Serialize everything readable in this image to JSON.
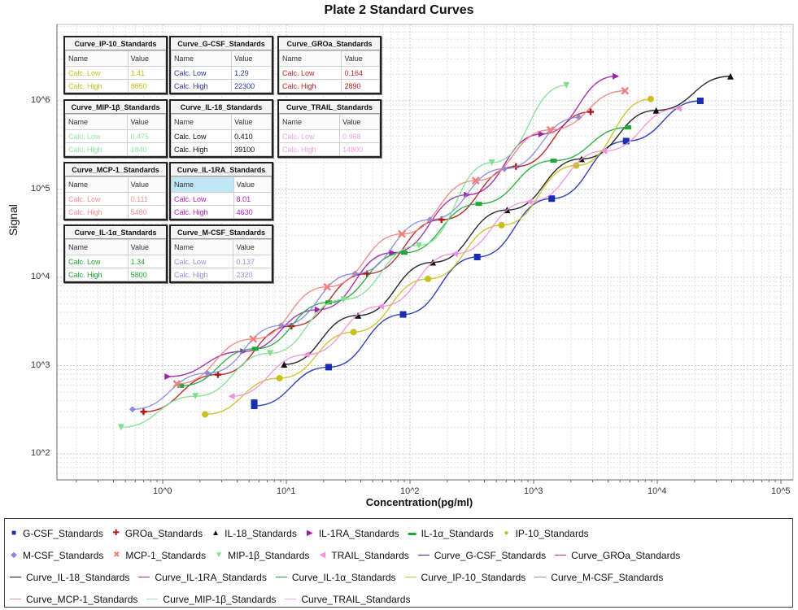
{
  "chart_data": {
    "type": "line",
    "title": "Plate 2 Standard Curves",
    "xlabel": "Concentration(pg/ml)",
    "ylabel": "Signal",
    "xscale": "log",
    "yscale": "log",
    "xlim": [
      0.2,
      100000
    ],
    "ylim": [
      50,
      8000000
    ],
    "xticks": [
      "10^0",
      "10^1",
      "10^2",
      "10^3",
      "10^4",
      "10^5"
    ],
    "yticks": [
      "10^2",
      "10^3",
      "10^4",
      "10^5",
      "10^6"
    ],
    "grid": true,
    "legend_position": "bottom",
    "series": [
      {
        "name": "G-CSF_Standards",
        "color": "#1a2fb0",
        "marker": "square",
        "points": [
          [
            5.5,
            380
          ],
          [
            5.5,
            350
          ],
          [
            22,
            960
          ],
          [
            88,
            3800
          ],
          [
            350,
            17000
          ],
          [
            1400,
            78000
          ],
          [
            5600,
            350000
          ],
          [
            22300,
            1000000
          ]
        ]
      },
      {
        "name": "GROa_Standards",
        "color": "#b01818",
        "marker": "plus",
        "points": [
          [
            0.7,
            300
          ],
          [
            2.8,
            790
          ],
          [
            11,
            2800
          ],
          [
            45,
            11000
          ],
          [
            180,
            45000
          ],
          [
            720,
            180000
          ],
          [
            2890,
            750000
          ]
        ]
      },
      {
        "name": "IL-18_Standards",
        "color": "#111111",
        "marker": "triangle",
        "points": [
          [
            9.6,
            1030
          ],
          [
            38,
            3700
          ],
          [
            153,
            14800
          ],
          [
            610,
            58000
          ],
          [
            2440,
            220000
          ],
          [
            9800,
            780000
          ],
          [
            39100,
            1900000
          ]
        ]
      },
      {
        "name": "IL-1RA_Standards",
        "color": "#a01fa8",
        "marker": "triangle-right",
        "points": [
          [
            1.1,
            750
          ],
          [
            4.5,
            1450
          ],
          [
            18,
            4300
          ],
          [
            72,
            19000
          ],
          [
            290,
            86000
          ],
          [
            1160,
            420000
          ],
          [
            4630,
            1900000
          ]
        ]
      },
      {
        "name": "IL-1α_Standards",
        "color": "#1fa83a",
        "marker": "bar",
        "points": [
          [
            1.4,
            590
          ],
          [
            5.6,
            1550
          ],
          [
            22,
            5200
          ],
          [
            90,
            19000
          ],
          [
            360,
            68000
          ],
          [
            1450,
            210000
          ],
          [
            5800,
            500000
          ]
        ]
      },
      {
        "name": "IP-10_Standards",
        "color": "#c8c020",
        "marker": "circle",
        "points": [
          [
            2.2,
            280
          ],
          [
            8.8,
            720
          ],
          [
            35,
            2400
          ],
          [
            140,
            9600
          ],
          [
            550,
            39000
          ],
          [
            2210,
            185000
          ],
          [
            8850,
            1050000
          ]
        ]
      },
      {
        "name": "M-CSF_Standards",
        "color": "#8a8ae0",
        "marker": "diamond",
        "points": [
          [
            0.57,
            320
          ],
          [
            2.3,
            820
          ],
          [
            9.1,
            2850
          ],
          [
            36,
            11000
          ],
          [
            145,
            45000
          ],
          [
            580,
            170000
          ],
          [
            2320,
            650000
          ]
        ]
      },
      {
        "name": "MCP-1_Standards",
        "color": "#f08080",
        "marker": "x",
        "points": [
          [
            1.3,
            620
          ],
          [
            5.4,
            2000
          ],
          [
            21.4,
            7800
          ],
          [
            86,
            31000
          ],
          [
            340,
            125000
          ],
          [
            1370,
            470000
          ],
          [
            5480,
            1300000
          ]
        ]
      },
      {
        "name": "MIP-1β_Standards",
        "color": "#80e090",
        "marker": "triangle-down",
        "points": [
          [
            0.46,
            200
          ],
          [
            1.84,
            450
          ],
          [
            7.4,
            1380
          ],
          [
            29,
            5600
          ],
          [
            118,
            23000
          ],
          [
            460,
            200000
          ],
          [
            1840,
            1500000
          ]
        ]
      },
      {
        "name": "TRAIL_Standards",
        "color": "#f090e0",
        "marker": "triangle-left",
        "points": [
          [
            3.6,
            450
          ],
          [
            14.5,
            1330
          ],
          [
            58,
            4700
          ],
          [
            230,
            18500
          ],
          [
            920,
            72000
          ],
          [
            3700,
            270000
          ],
          [
            14800,
            820000
          ]
        ]
      }
    ]
  },
  "title": "Plate 2 Standard Curves",
  "axes": {
    "xlabel": "Concentration(pg/ml)",
    "ylabel": "Signal",
    "xticks": [
      "10^0",
      "10^1",
      "10^2",
      "10^3",
      "10^4",
      "10^5"
    ],
    "yticks": [
      "10^6",
      "10^5",
      "10^4",
      "10^3",
      "10^2"
    ]
  },
  "info_boxes": [
    {
      "title": "Curve_IP-10_Standards",
      "col_name": "Name",
      "col_value": "Value",
      "color": "#c8c020",
      "low_label": "Calc. Low",
      "low": "1.41",
      "high_label": "Calc. High",
      "high": "8850"
    },
    {
      "title": "Curve_G-CSF_Standards",
      "col_name": "Name",
      "col_value": "Value",
      "color": "#2a35a8",
      "low_label": "Calc. Low",
      "low": "1.29",
      "high_label": "Calc. High",
      "high": "22300"
    },
    {
      "title": "Curve_GROa_Standards",
      "col_name": "Name",
      "col_value": "Value",
      "color": "#c02020",
      "low_label": "Calc. Low",
      "low": "0.164",
      "high_label": "Calc. High",
      "high": "2890"
    },
    {
      "title": "Curve_MIP-1β_Standards",
      "col_name": "Name",
      "col_value": "Value",
      "color": "#90e8a0",
      "low_label": "Calc. Low",
      "low": "0.475",
      "high_label": "Calc. High",
      "high": "1840"
    },
    {
      "title": "Curve_IL-18_Standards",
      "col_name": "Name",
      "col_value": "Value",
      "color": "#111111",
      "low_label": "Calc. Low",
      "low": "0.410",
      "high_label": "Calc. High",
      "high": "39100"
    },
    {
      "title": "Curve_TRAIL_Standards",
      "col_name": "Name",
      "col_value": "Value",
      "color": "#f0a0e8",
      "low_label": "Calc. Low",
      "low": "0.968",
      "high_label": "Calc. High",
      "high": "14800"
    },
    {
      "title": "Curve_MCP-1_Standards",
      "col_name": "Name",
      "col_value": "Value",
      "color": "#f09090",
      "low_label": "Calc. Low",
      "low": "0.111",
      "high_label": "Calc. High",
      "high": "5480"
    },
    {
      "title": "Curve_IL-1RA_Standards",
      "col_name": "Name",
      "col_value": "Value",
      "color": "#b020b0",
      "low_label": "Calc. Low",
      "low": "8.01",
      "high_label": "Calc. High",
      "high": "4630"
    },
    {
      "title": "Curve_IL-1α_Standards",
      "col_name": "Name",
      "col_value": "Value",
      "color": "#20a830",
      "low_label": "Calc. Low",
      "low": "1.34",
      "high_label": "Calc. High",
      "high": "5800"
    },
    {
      "title": "Curve_M-CSF_Standards",
      "col_name": "Name",
      "col_value": "Value",
      "color": "#9090e0",
      "low_label": "Calc. Low",
      "low": "0.137",
      "high_label": "Calc. High",
      "high": "2320"
    }
  ],
  "legend": {
    "rows": [
      [
        {
          "kind": "marker",
          "glyph": "■",
          "color": "#1a2fb0",
          "label": "G-CSF_Standards"
        },
        {
          "kind": "marker",
          "glyph": "✚",
          "color": "#b01818",
          "label": "GROa_Standards"
        },
        {
          "kind": "marker",
          "glyph": "▲",
          "color": "#111111",
          "label": "IL-18_Standards"
        },
        {
          "kind": "marker",
          "glyph": "▶",
          "color": "#a01fa8",
          "label": "IL-1RA_Standards"
        },
        {
          "kind": "marker",
          "glyph": "▬",
          "color": "#1fa83a",
          "label": "IL-1α_Standards"
        },
        {
          "kind": "marker",
          "glyph": "●",
          "color": "#c8c020",
          "label": "IP-10_Standards"
        }
      ],
      [
        {
          "kind": "marker",
          "glyph": "◆",
          "color": "#8a8ae0",
          "label": "M-CSF_Standards"
        },
        {
          "kind": "marker",
          "glyph": "✖",
          "color": "#f08080",
          "label": "MCP-1_Standards"
        },
        {
          "kind": "marker",
          "glyph": "▼",
          "color": "#80e090",
          "label": "MIP-1β_Standards"
        },
        {
          "kind": "marker",
          "glyph": "◀",
          "color": "#f090e0",
          "label": "TRAIL_Standards"
        },
        {
          "kind": "line",
          "color": "#2a3590",
          "label": "Curve_G-CSF_Standards"
        },
        {
          "kind": "line",
          "color": "#b04030",
          "label": "Curve_GROa_Standards"
        }
      ],
      [
        {
          "kind": "line",
          "color": "#111111",
          "label": "Curve_IL-18_Standards"
        },
        {
          "kind": "line",
          "color": "#a030a0",
          "label": "Curve_IL-1RA_Standards"
        },
        {
          "kind": "line",
          "color": "#30a040",
          "label": "Curve_IL-1α_Standards"
        },
        {
          "kind": "line",
          "color": "#c8c040",
          "label": "Curve_IP-10_Standards"
        },
        {
          "kind": "line",
          "color": "#9090c8",
          "label": "Curve_M-CSF_Standards"
        }
      ],
      [
        {
          "kind": "line",
          "color": "#e09090",
          "label": "Curve_MCP-1_Standards"
        },
        {
          "kind": "line",
          "color": "#a0e8b0",
          "label": "Curve_MIP-1β_Standards"
        },
        {
          "kind": "line",
          "color": "#f0a8e8",
          "label": "Curve_TRAIL_Standards"
        }
      ]
    ]
  }
}
